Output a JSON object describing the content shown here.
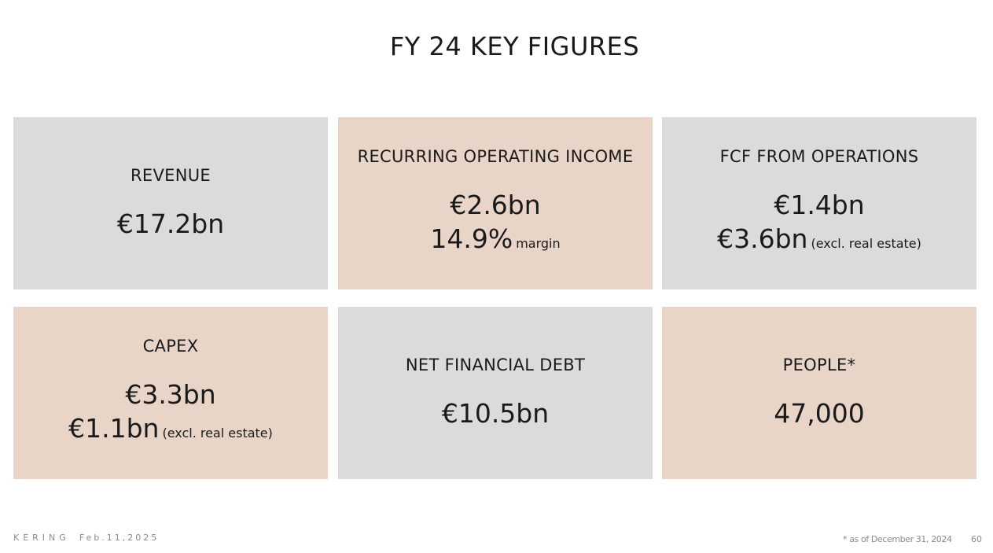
{
  "title": "FY 24 KEY FIGURES",
  "cards": [
    {
      "label": "REVENUE",
      "value": "€17.2bn"
    },
    {
      "label": "RECURRING OPERATING INCOME",
      "value": "€2.6bn",
      "value2": "14.9%",
      "value2_note": "margin"
    },
    {
      "label": "FCF FROM OPERATIONS",
      "value": "€1.4bn",
      "value2": "€3.6bn",
      "value2_note": "(excl. real estate)"
    },
    {
      "label": "CAPEX",
      "value": "€3.3bn",
      "value2": "€1.1bn",
      "value2_note": "(excl. real estate)"
    },
    {
      "label": "NET FINANCIAL DEBT",
      "value": "€10.5bn"
    },
    {
      "label": "PEOPLE*",
      "value": "47,000"
    }
  ],
  "colors": {
    "grey_card": "#dcdadb",
    "beige_card": "#e8d5c8",
    "footer_text": "#8a8a8a"
  },
  "footer": {
    "brand": "KERING",
    "date": "Feb.11,2025",
    "footnote": "* as of December 31, 2024",
    "page_number": "60"
  }
}
